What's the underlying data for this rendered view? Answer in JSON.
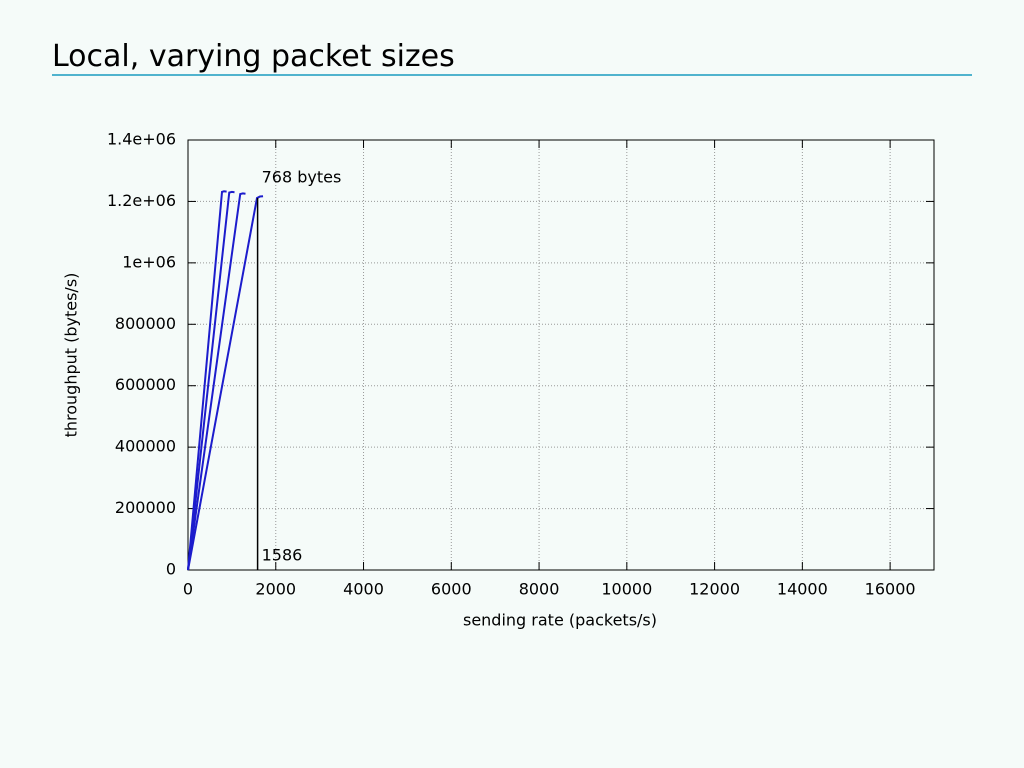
{
  "slide_title": "Local, varying packet sizes",
  "chart_data": {
    "type": "line",
    "xlabel": "sending rate (packets/s)",
    "ylabel": "throughput (bytes/s)",
    "xlim": [
      0,
      17000
    ],
    "ylim": [
      0,
      1400000
    ],
    "xticks": [
      0,
      2000,
      4000,
      6000,
      8000,
      10000,
      12000,
      14000,
      16000
    ],
    "yticks": [
      0,
      200000,
      400000,
      600000,
      800000,
      {
        "value": 1000000,
        "label": "1e+06"
      },
      {
        "value": 1200000,
        "label": "1.2e+06"
      },
      {
        "value": 1400000,
        "label": "1.4e+06"
      }
    ],
    "grid": true,
    "series": [
      {
        "color": "#1c1ccc",
        "x": [
          0,
          775,
          820,
          880
        ],
        "values": [
          0,
          1231000,
          1233000,
          1232000
        ]
      },
      {
        "color": "#1c1ccc",
        "x": [
          0,
          940,
          1000,
          1060
        ],
        "values": [
          0,
          1229000,
          1231000,
          1230000
        ]
      },
      {
        "color": "#1c1ccc",
        "x": [
          0,
          1190,
          1250,
          1310
        ],
        "values": [
          0,
          1224000,
          1226000,
          1225000
        ]
      },
      {
        "color": "#1c1ccc",
        "x": [
          0,
          1572,
          1640,
          1710
        ],
        "values": [
          0,
          1211000,
          1216000,
          1217000
        ]
      }
    ],
    "annotation": "768 bytes",
    "vline": 1586
  }
}
